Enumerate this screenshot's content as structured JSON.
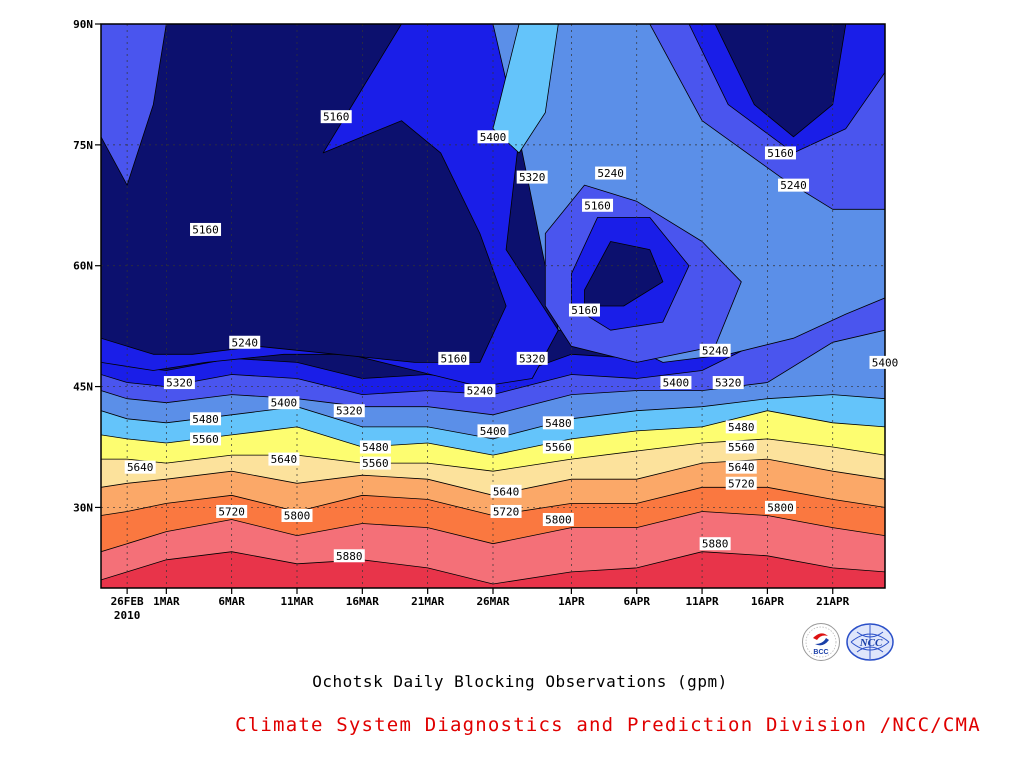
{
  "chart_data": {
    "type": "heatmap",
    "subtype": "filled-contour",
    "title": "Ochotsk Daily Blocking Observations (gpm)",
    "credit": "Climate System Diagnostics and Prediction Division /NCC/CMA",
    "logos": [
      "BCC",
      "NCC"
    ],
    "x_axis": {
      "kind": "date",
      "start": "26FEB",
      "year_label": "2010",
      "ticks": [
        "26FEB",
        "1MAR",
        "6MAR",
        "11MAR",
        "16MAR",
        "21MAR",
        "26MAR",
        "1APR",
        "6APR",
        "11APR",
        "16APR",
        "21APR"
      ],
      "range": [
        "2010-02-24",
        "2010-04-25"
      ]
    },
    "y_axis": {
      "kind": "latitude",
      "ticks": [
        "30N",
        "45N",
        "60N",
        "75N",
        "90N"
      ],
      "range": [
        20,
        90
      ]
    },
    "grid": "dotted",
    "contour_levels": [
      5160,
      5240,
      5320,
      5400,
      5480,
      5560,
      5640,
      5720,
      5800,
      5880
    ],
    "fill_colors": {
      "below_5160": "#0c106e",
      "5160_5240": "#1a1ee8",
      "5240_5320": "#4a55ee",
      "5320_5400": "#5b8fe8",
      "5400_5480": "#64c4fa",
      "5480_5560": "#fdfd70",
      "5560_5640": "#fce29c",
      "5640_5720": "#fba868",
      "5720_5800": "#fa7840",
      "5800_5880": "#f47078",
      "above_5880": "#e8344a"
    },
    "contour_labels": [
      {
        "text": "5160",
        "date": "14MAR",
        "lat": 78.5
      },
      {
        "text": "5160",
        "date": "4MAR",
        "lat": 64.5
      },
      {
        "text": "5160",
        "date": "23MAR",
        "lat": 48.5
      },
      {
        "text": "5160",
        "date": "3APR",
        "lat": 67.5
      },
      {
        "text": "5160",
        "date": "2APR",
        "lat": 54.5
      },
      {
        "text": "5160",
        "date": "17APR",
        "lat": 74.0
      },
      {
        "text": "5240",
        "date": "7MAR",
        "lat": 50.5
      },
      {
        "text": "5240",
        "date": "25MAR",
        "lat": 44.5
      },
      {
        "text": "5240",
        "date": "4APR",
        "lat": 71.5
      },
      {
        "text": "5240",
        "date": "12APR",
        "lat": 49.5
      },
      {
        "text": "5240",
        "date": "18APR",
        "lat": 70.0
      },
      {
        "text": "5320",
        "date": "2MAR",
        "lat": 45.5
      },
      {
        "text": "5320",
        "date": "15MAR",
        "lat": 42.0
      },
      {
        "text": "5320",
        "date": "29MAR",
        "lat": 71.0
      },
      {
        "text": "5320",
        "date": "29MAR",
        "lat": 48.5
      },
      {
        "text": "5320",
        "date": "13APR",
        "lat": 45.5
      },
      {
        "text": "5400",
        "date": "10MAR",
        "lat": 43.0
      },
      {
        "text": "5400",
        "date": "26MAR",
        "lat": 76.0
      },
      {
        "text": "5400",
        "date": "26MAR",
        "lat": 39.5
      },
      {
        "text": "5400",
        "date": "9APR",
        "lat": 45.5
      },
      {
        "text": "5400",
        "date": "25APR",
        "lat": 48.0
      },
      {
        "text": "5480",
        "date": "4MAR",
        "lat": 41.0
      },
      {
        "text": "5480",
        "date": "17MAR",
        "lat": 37.5
      },
      {
        "text": "5480",
        "date": "31MAR",
        "lat": 40.5
      },
      {
        "text": "5480",
        "date": "14APR",
        "lat": 40.0
      },
      {
        "text": "5560",
        "date": "4MAR",
        "lat": 38.5
      },
      {
        "text": "5560",
        "date": "17MAR",
        "lat": 35.5
      },
      {
        "text": "5560",
        "date": "31MAR",
        "lat": 37.5
      },
      {
        "text": "5560",
        "date": "14APR",
        "lat": 37.5
      },
      {
        "text": "5640",
        "date": "27FEB",
        "lat": 35.0
      },
      {
        "text": "5640",
        "date": "10MAR",
        "lat": 36.0
      },
      {
        "text": "5640",
        "date": "27MAR",
        "lat": 32.0
      },
      {
        "text": "5640",
        "date": "14APR",
        "lat": 35.0
      },
      {
        "text": "5720",
        "date": "6MAR",
        "lat": 29.5
      },
      {
        "text": "5720",
        "date": "27MAR",
        "lat": 29.5
      },
      {
        "text": "5720",
        "date": "14APR",
        "lat": 33.0
      },
      {
        "text": "5800",
        "date": "11MAR",
        "lat": 29.0
      },
      {
        "text": "5800",
        "date": "31MAR",
        "lat": 28.5
      },
      {
        "text": "5800",
        "date": "17APR",
        "lat": 30.0
      },
      {
        "text": "5880",
        "date": "15MAR",
        "lat": 24.0
      },
      {
        "text": "5880",
        "date": "12APR",
        "lat": 25.5
      }
    ]
  }
}
